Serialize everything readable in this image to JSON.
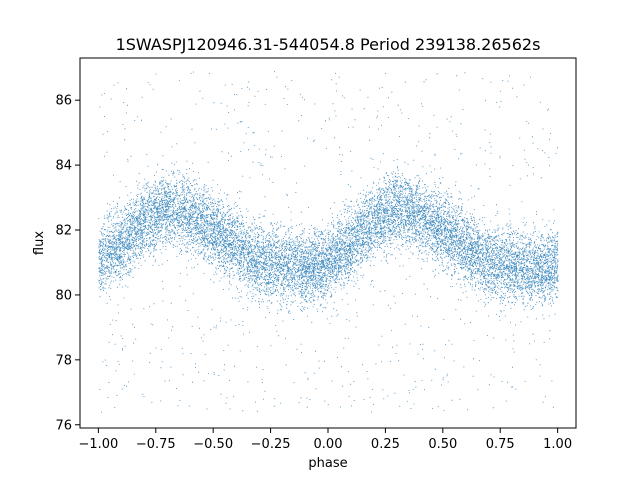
{
  "chart_data": {
    "type": "scatter",
    "title": "1SWASPJ120946.31-544054.8 Period 239138.26562s",
    "xlabel": "phase",
    "ylabel": "flux",
    "xlim": [
      -1.08,
      1.08
    ],
    "ylim": [
      75.9,
      87.3
    ],
    "xticks": [
      -1.0,
      -0.75,
      -0.5,
      -0.25,
      0.0,
      0.25,
      0.5,
      0.75,
      1.0
    ],
    "xtick_labels": [
      "−1.00",
      "−0.75",
      "−0.50",
      "−0.25",
      "0.00",
      "0.25",
      "0.50",
      "0.75",
      "1.00"
    ],
    "yticks": [
      76,
      78,
      80,
      82,
      84,
      86
    ],
    "ytick_labels": [
      "76",
      "78",
      "80",
      "82",
      "84",
      "86"
    ],
    "grid": false,
    "marker_color": "#1f77b4",
    "series": [
      {
        "x_range": [
          -1.0,
          1.0
        ],
        "trend": {
          "x": [
            -1.0,
            -0.9,
            -0.8,
            -0.7,
            -0.6,
            -0.5,
            -0.4,
            -0.3,
            -0.2,
            -0.1,
            0.0,
            0.1,
            0.2,
            0.3,
            0.4,
            0.5,
            0.6,
            0.7,
            0.8,
            0.9,
            1.0
          ],
          "y": [
            81.1,
            81.6,
            82.3,
            82.7,
            82.4,
            82.0,
            81.5,
            81.0,
            80.9,
            80.8,
            81.0,
            81.6,
            82.3,
            82.7,
            82.4,
            82.0,
            81.5,
            81.0,
            80.9,
            80.8,
            81.0
          ]
        },
        "scatter_sd": 0.55,
        "outlier_fraction": 0.06,
        "outlier_range": [
          76.4,
          86.9
        ],
        "approx_point_count": 14000
      }
    ]
  }
}
